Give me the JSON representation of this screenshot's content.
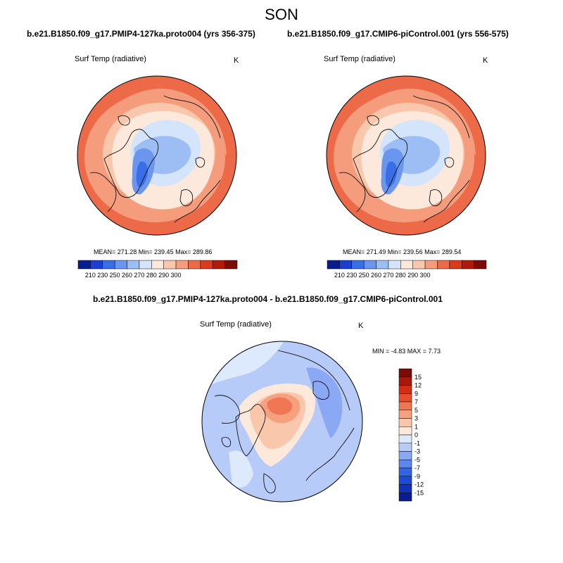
{
  "season": "SON",
  "colors": {
    "abs_scale": [
      "#081d8f",
      "#1a3fd0",
      "#3a6ee6",
      "#6a96ee",
      "#9dbdf5",
      "#d4e5fb",
      "#fde9dc",
      "#f9c7ab",
      "#f49c7c",
      "#ec6a48",
      "#da3b1c",
      "#b01a0b",
      "#7a0b05"
    ],
    "diff_scale": [
      "#081d8f",
      "#1232b8",
      "#1f4ad6",
      "#3363e6",
      "#5d86ee",
      "#8aa8f3",
      "#b6cbf8",
      "#dde9fd",
      "#fde9dc",
      "#f9c7ab",
      "#f6a07d",
      "#f07753",
      "#e64e2c",
      "#cf2e13",
      "#a9160a",
      "#7a0b05"
    ],
    "coast": "#111111",
    "rim": "#000000"
  },
  "panels": [
    {
      "title": "b.e21.B1850.f09_g17.PMIP4-127ka.proto004 (yrs 356-375)",
      "variable": "Surf Temp (radiative)",
      "units": "K",
      "stats": "MEAN= 271.28  Min= 239.45  Max= 289.86"
    },
    {
      "title": "b.e21.B1850.f09_g17.CMIP6-piControl.001 (yrs 556-575)",
      "variable": "Surf Temp (radiative)",
      "units": "K",
      "stats": "MEAN= 271.49  Min= 239.56  Max= 289.54"
    }
  ],
  "diff_panel": {
    "title": "b.e21.B1850.f09_g17.PMIP4-127ka.proto004 - b.e21.B1850.f09_g17.CMIP6-piControl.001",
    "variable": "Surf Temp (radiative)",
    "units": "K",
    "stats": "MIN =  -4.83 MAX =   7.73"
  },
  "chart_data": [
    {
      "type": "heatmap",
      "title": "b.e21.B1850.f09_g17.PMIP4-127ka.proto004 (yrs 356-375)",
      "projection": "north polar stereographic",
      "variable": "Surf Temp (radiative)",
      "units": "K",
      "mean": 271.28,
      "min": 239.45,
      "max": 289.86,
      "colorbar_ticks": [
        "210",
        "230",
        "250",
        "260",
        "270",
        "280",
        "290",
        "300"
      ]
    },
    {
      "type": "heatmap",
      "title": "b.e21.B1850.f09_g17.CMIP6-piControl.001 (yrs 556-575)",
      "projection": "north polar stereographic",
      "variable": "Surf Temp (radiative)",
      "units": "K",
      "mean": 271.49,
      "min": 239.56,
      "max": 289.54,
      "colorbar_ticks": [
        "210",
        "230",
        "250",
        "260",
        "270",
        "280",
        "290",
        "300"
      ]
    },
    {
      "type": "heatmap",
      "title": "b.e21.B1850.f09_g17.PMIP4-127ka.proto004 - b.e21.B1850.f09_g17.CMIP6-piControl.001",
      "projection": "north polar stereographic",
      "variable": "Surf Temp (radiative)",
      "units": "K",
      "min": -4.83,
      "max": 7.73,
      "colorbar_ticks": [
        "15",
        "12",
        "9",
        "7",
        "5",
        "3",
        "1",
        "0",
        "-1",
        "-3",
        "-5",
        "-7",
        "-9",
        "-12",
        "-15"
      ]
    }
  ]
}
